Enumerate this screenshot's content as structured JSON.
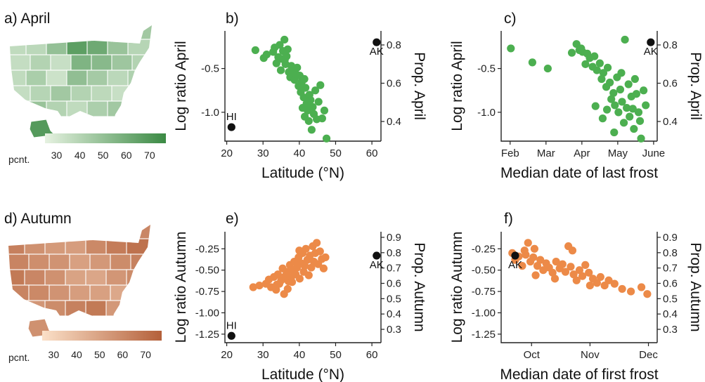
{
  "chart_data": [
    {
      "id": "a",
      "type": "choropleth-map",
      "panel_label": "a) April",
      "legend": {
        "title": "pcnt.",
        "ticks": [
          30,
          40,
          50,
          60,
          70
        ],
        "range": [
          25,
          77
        ]
      },
      "colors": {
        "low": "#e6f2e1",
        "high": "#3b8a44"
      }
    },
    {
      "id": "b",
      "type": "scatter",
      "panel_label": "b)",
      "xlabel": "Latitude (°N)",
      "ylabel": "Log ratio April",
      "ylabel_right": "Prop. April",
      "xticks": [
        20,
        30,
        40,
        50,
        60
      ],
      "yticks": [
        -0.5,
        -1.0
      ],
      "yticks_right": [
        0.8,
        0.6,
        0.4
      ],
      "xlim": [
        19.5,
        62.5
      ],
      "ylim": [
        -1.33,
        -0.07
      ],
      "color": "#4caf50",
      "points": [
        [
          27.9,
          -0.29
        ],
        [
          30.2,
          -0.38
        ],
        [
          31.0,
          -0.34
        ],
        [
          32.8,
          -0.31
        ],
        [
          33.2,
          -0.26
        ],
        [
          33.7,
          -0.44
        ],
        [
          34.2,
          -0.37
        ],
        [
          34.6,
          -0.23
        ],
        [
          34.9,
          -0.52
        ],
        [
          35.2,
          -0.39
        ],
        [
          35.5,
          -0.3
        ],
        [
          35.9,
          -0.17
        ],
        [
          36.2,
          -0.45
        ],
        [
          36.5,
          -0.36
        ],
        [
          36.8,
          -0.28
        ],
        [
          37.1,
          -0.54
        ],
        [
          37.5,
          -0.6
        ],
        [
          37.8,
          -0.47
        ],
        [
          38.3,
          -0.51
        ],
        [
          38.7,
          -0.63
        ],
        [
          39.0,
          -0.56
        ],
        [
          39.4,
          -0.49
        ],
        [
          39.8,
          -0.7
        ],
        [
          40.1,
          -0.58
        ],
        [
          40.4,
          -0.77
        ],
        [
          40.7,
          -0.65
        ],
        [
          40.9,
          -0.95
        ],
        [
          41.2,
          -0.83
        ],
        [
          41.5,
          -1.05
        ],
        [
          41.7,
          -0.72
        ],
        [
          42.0,
          -0.9
        ],
        [
          42.3,
          -0.98
        ],
        [
          42.6,
          -1.1
        ],
        [
          42.8,
          -0.8
        ],
        [
          43.1,
          -0.86
        ],
        [
          43.4,
          -1.2
        ],
        [
          43.7,
          -0.94
        ],
        [
          44.0,
          -1.02
        ],
        [
          44.4,
          -0.75
        ],
        [
          44.8,
          -1.08
        ],
        [
          45.3,
          -0.88
        ],
        [
          45.8,
          -0.69
        ],
        [
          46.3,
          -1.07
        ],
        [
          46.9,
          -0.98
        ],
        [
          47.5,
          -1.3
        ],
        [
          41.4,
          -0.62
        ],
        [
          36.0,
          -0.4
        ]
      ],
      "highlights": [
        {
          "label": "HI",
          "x": 21.3,
          "y": -1.17
        },
        {
          "label": "AK",
          "x": 61.3,
          "y": -0.2
        }
      ]
    },
    {
      "id": "c",
      "type": "scatter",
      "panel_label": "c)",
      "xlabel": "Median date of last frost",
      "ylabel": "Log ratio April",
      "ylabel_right": "Prop. April",
      "xticks": [
        "Feb",
        "Mar",
        "Apr",
        "May",
        "June"
      ],
      "xtick_values": [
        0,
        1,
        2,
        3,
        4
      ],
      "yticks": [
        -0.5,
        -1.0
      ],
      "yticks_right": [
        0.8,
        0.6,
        0.4
      ],
      "xlim": [
        -0.25,
        4.1
      ],
      "ylim": [
        -1.33,
        -0.07
      ],
      "color": "#4caf50",
      "points": [
        [
          0.02,
          -0.27
        ],
        [
          0.62,
          -0.43
        ],
        [
          1.05,
          -0.5
        ],
        [
          1.72,
          -0.32
        ],
        [
          1.85,
          -0.22
        ],
        [
          1.93,
          -0.29
        ],
        [
          2.02,
          -0.31
        ],
        [
          2.1,
          -0.45
        ],
        [
          2.15,
          -0.33
        ],
        [
          2.22,
          -0.38
        ],
        [
          2.3,
          -0.48
        ],
        [
          2.35,
          -0.36
        ],
        [
          2.42,
          -0.52
        ],
        [
          2.5,
          -0.44
        ],
        [
          2.55,
          -0.62
        ],
        [
          2.6,
          -0.55
        ],
        [
          2.68,
          -0.71
        ],
        [
          2.72,
          -0.49
        ],
        [
          2.78,
          -0.66
        ],
        [
          2.82,
          -0.85
        ],
        [
          2.88,
          -0.78
        ],
        [
          2.92,
          -0.92
        ],
        [
          2.98,
          -0.6
        ],
        [
          3.02,
          -1.0
        ],
        [
          3.07,
          -0.74
        ],
        [
          3.12,
          -0.88
        ],
        [
          3.17,
          -1.12
        ],
        [
          3.2,
          -0.17
        ],
        [
          3.25,
          -0.95
        ],
        [
          3.3,
          -0.68
        ],
        [
          3.33,
          -1.05
        ],
        [
          3.38,
          -0.82
        ],
        [
          3.42,
          -0.96
        ],
        [
          3.48,
          -0.62
        ],
        [
          3.52,
          -0.79
        ],
        [
          3.58,
          -1.0
        ],
        [
          3.62,
          -1.1
        ],
        [
          3.65,
          -1.3
        ],
        [
          3.72,
          -0.75
        ],
        [
          3.78,
          -0.92
        ],
        [
          2.58,
          -1.07
        ],
        [
          2.9,
          -1.23
        ],
        [
          3.1,
          -0.55
        ],
        [
          1.98,
          -0.27
        ],
        [
          2.7,
          -0.97
        ],
        [
          3.45,
          -1.19
        ],
        [
          2.38,
          -0.93
        ]
      ],
      "highlights": [
        {
          "label": "AK",
          "x": 3.92,
          "y": -0.2
        }
      ]
    },
    {
      "id": "d",
      "type": "choropleth-map",
      "panel_label": "d) Autumn",
      "legend": {
        "title": "pcnt.",
        "ticks": [
          30,
          40,
          50,
          60,
          70
        ],
        "range": [
          25,
          77
        ]
      },
      "colors": {
        "low": "#fbe0c8",
        "high": "#b4603a"
      }
    },
    {
      "id": "e",
      "type": "scatter",
      "panel_label": "e)",
      "xlabel": "Latitude (°N)",
      "ylabel": "Log ratio Autumn",
      "ylabel_right": "Prop. Autumn",
      "xticks": [
        20,
        30,
        40,
        50,
        60
      ],
      "yticks": [
        -0.25,
        -0.5,
        -0.75,
        -1.0,
        -1.25
      ],
      "yticks_right": [
        0.9,
        0.8,
        0.7,
        0.6,
        0.5,
        0.4,
        0.3
      ],
      "xlim": [
        19.5,
        62.5
      ],
      "ylim": [
        -1.35,
        -0.05
      ],
      "color": "#ec8a48",
      "points": [
        [
          27.3,
          -0.7
        ],
        [
          29.0,
          -0.68
        ],
        [
          30.8,
          -0.66
        ],
        [
          31.6,
          -0.61
        ],
        [
          32.2,
          -0.7
        ],
        [
          33.0,
          -0.58
        ],
        [
          33.6,
          -0.73
        ],
        [
          34.1,
          -0.55
        ],
        [
          34.5,
          -0.66
        ],
        [
          35.0,
          -0.62
        ],
        [
          35.4,
          -0.48
        ],
        [
          35.8,
          -0.78
        ],
        [
          36.1,
          -0.57
        ],
        [
          36.5,
          -0.52
        ],
        [
          37.0,
          -0.63
        ],
        [
          37.4,
          -0.44
        ],
        [
          37.8,
          -0.58
        ],
        [
          38.2,
          -0.5
        ],
        [
          38.6,
          -0.4
        ],
        [
          39.0,
          -0.55
        ],
        [
          39.4,
          -0.47
        ],
        [
          39.8,
          -0.35
        ],
        [
          40.1,
          -0.6
        ],
        [
          40.5,
          -0.42
        ],
        [
          40.9,
          -0.3
        ],
        [
          41.2,
          -0.52
        ],
        [
          41.5,
          -0.45
        ],
        [
          41.8,
          -0.25
        ],
        [
          42.2,
          -0.38
        ],
        [
          42.6,
          -0.56
        ],
        [
          42.9,
          -0.33
        ],
        [
          43.3,
          -0.47
        ],
        [
          43.7,
          -0.22
        ],
        [
          44.0,
          -0.4
        ],
        [
          44.4,
          -0.3
        ],
        [
          44.8,
          -0.18
        ],
        [
          45.2,
          -0.43
        ],
        [
          45.7,
          -0.28
        ],
        [
          46.2,
          -0.37
        ],
        [
          46.7,
          -0.48
        ],
        [
          47.2,
          -0.35
        ],
        [
          38.0,
          -0.64
        ],
        [
          36.8,
          -0.72
        ],
        [
          33.8,
          -0.67
        ],
        [
          40.0,
          -0.27
        ]
      ],
      "highlights": [
        {
          "label": "HI",
          "x": 21.3,
          "y": -1.27
        },
        {
          "label": "AK",
          "x": 61.3,
          "y": -0.33
        }
      ]
    },
    {
      "id": "f",
      "type": "scatter",
      "panel_label": "f)",
      "xlabel": "Median date of first frost",
      "ylabel": "Log ratio Autumn",
      "ylabel_right": "Prop. Autumn",
      "xticks": [
        "Oct",
        "Nov",
        "Dec"
      ],
      "xtick_values": [
        0,
        1,
        2
      ],
      "yticks": [
        -0.25,
        -0.5,
        -0.75,
        -1.0,
        -1.25
      ],
      "yticks_right": [
        0.9,
        0.8,
        0.7,
        0.6,
        0.5,
        0.4,
        0.3
      ],
      "xlim": [
        -0.52,
        2.15
      ],
      "ylim": [
        -1.35,
        -0.05
      ],
      "color": "#ec8a48",
      "points": [
        [
          -0.33,
          -0.3
        ],
        [
          -0.28,
          -0.38
        ],
        [
          -0.22,
          -0.34
        ],
        [
          -0.16,
          -0.45
        ],
        [
          -0.1,
          -0.32
        ],
        [
          -0.06,
          -0.18
        ],
        [
          -0.02,
          -0.4
        ],
        [
          0.03,
          -0.35
        ],
        [
          0.07,
          -0.56
        ],
        [
          0.1,
          -0.45
        ],
        [
          0.15,
          -0.38
        ],
        [
          0.2,
          -0.5
        ],
        [
          0.25,
          -0.42
        ],
        [
          0.3,
          -0.47
        ],
        [
          0.36,
          -0.53
        ],
        [
          0.42,
          -0.4
        ],
        [
          0.48,
          -0.48
        ],
        [
          0.53,
          -0.43
        ],
        [
          0.58,
          -0.52
        ],
        [
          0.63,
          -0.22
        ],
        [
          0.67,
          -0.46
        ],
        [
          0.72,
          -0.55
        ],
        [
          0.77,
          -0.62
        ],
        [
          0.82,
          -0.5
        ],
        [
          0.87,
          -0.57
        ],
        [
          0.92,
          -0.44
        ],
        [
          0.98,
          -0.53
        ],
        [
          1.05,
          -0.6
        ],
        [
          1.12,
          -0.65
        ],
        [
          1.18,
          -0.58
        ],
        [
          1.25,
          -0.68
        ],
        [
          1.32,
          -0.62
        ],
        [
          1.42,
          -0.66
        ],
        [
          1.55,
          -0.72
        ],
        [
          1.7,
          -0.75
        ],
        [
          1.88,
          -0.7
        ],
        [
          1.98,
          -0.78
        ],
        [
          0.7,
          -0.27
        ],
        [
          0.4,
          -0.6
        ],
        [
          0.05,
          -0.25
        ],
        [
          -0.12,
          -0.27
        ],
        [
          1.0,
          -0.68
        ]
      ],
      "highlights": [
        {
          "label": "AK",
          "x": -0.28,
          "y": -0.33
        }
      ]
    }
  ]
}
